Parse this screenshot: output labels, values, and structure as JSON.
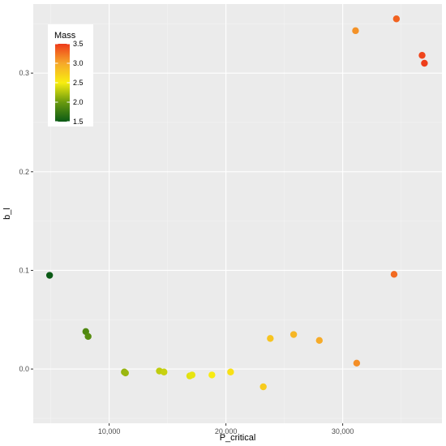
{
  "chart_data": {
    "type": "scatter",
    "xlabel": "P_critical",
    "ylabel": "b_l",
    "xlim": [
      3500,
      38500
    ],
    "ylim": [
      -0.055,
      0.37
    ],
    "x_ticks": [
      10000,
      20000,
      30000
    ],
    "x_tick_labels": [
      "10,000",
      "20,000",
      "30,000"
    ],
    "y_ticks": [
      0.0,
      0.1,
      0.2,
      0.3
    ],
    "y_tick_labels": [
      "0.0",
      "0.1",
      "0.2",
      "0.3"
    ],
    "grid": true,
    "legend": {
      "title": "Mass",
      "placement": "top-left",
      "min": 1.5,
      "max": 3.5,
      "tick_labels": [
        "3.5",
        "3.0",
        "2.5",
        "2.0",
        "1.5"
      ],
      "tick_values": [
        3.5,
        3.0,
        2.5,
        2.0,
        1.5
      ],
      "colors": [
        "#0b5a16",
        "#6a9a0e",
        "#f8ee10",
        "#f6a82a",
        "#ee3a1a"
      ]
    },
    "points": [
      {
        "x": 4900,
        "y": 0.095,
        "mass": 1.5
      },
      {
        "x": 8000,
        "y": 0.038,
        "mass": 1.85
      },
      {
        "x": 8200,
        "y": 0.033,
        "mass": 1.9
      },
      {
        "x": 11300,
        "y": -0.003,
        "mass": 2.15
      },
      {
        "x": 11400,
        "y": -0.004,
        "mass": 2.17
      },
      {
        "x": 14300,
        "y": -0.002,
        "mass": 2.3
      },
      {
        "x": 14700,
        "y": -0.003,
        "mass": 2.33
      },
      {
        "x": 16900,
        "y": -0.007,
        "mass": 2.42
      },
      {
        "x": 17100,
        "y": -0.006,
        "mass": 2.44
      },
      {
        "x": 18800,
        "y": -0.006,
        "mass": 2.52
      },
      {
        "x": 20400,
        "y": -0.003,
        "mass": 2.6
      },
      {
        "x": 23200,
        "y": -0.018,
        "mass": 2.75
      },
      {
        "x": 23800,
        "y": 0.031,
        "mass": 2.8
      },
      {
        "x": 25800,
        "y": 0.035,
        "mass": 2.9
      },
      {
        "x": 28000,
        "y": 0.029,
        "mass": 2.98
      },
      {
        "x": 31100,
        "y": 0.343,
        "mass": 3.1
      },
      {
        "x": 31200,
        "y": 0.006,
        "mass": 3.12
      },
      {
        "x": 34400,
        "y": 0.096,
        "mass": 3.28
      },
      {
        "x": 34600,
        "y": 0.355,
        "mass": 3.32
      },
      {
        "x": 36800,
        "y": 0.318,
        "mass": 3.45
      },
      {
        "x": 37000,
        "y": 0.31,
        "mass": 3.48
      }
    ]
  }
}
